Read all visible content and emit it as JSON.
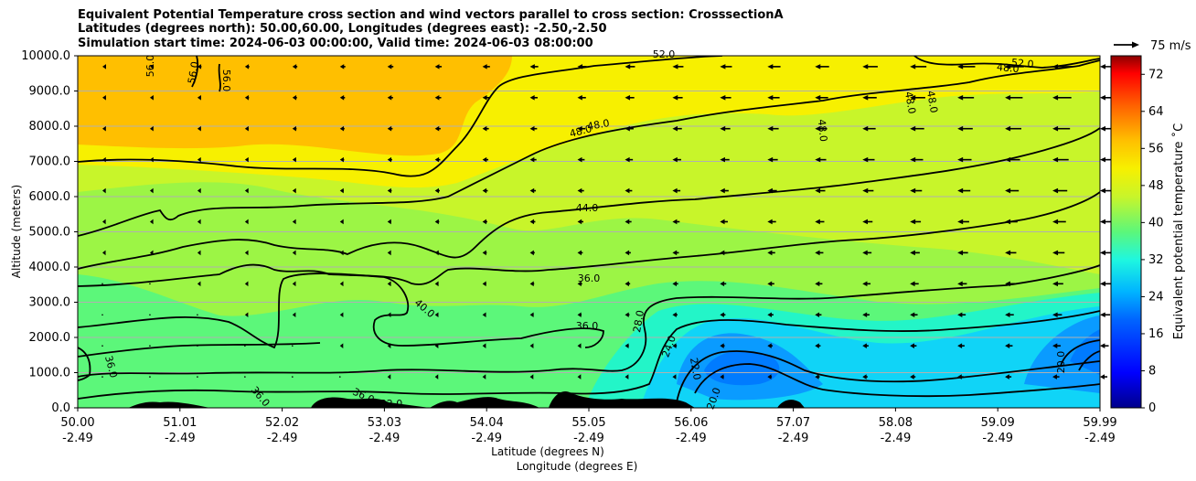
{
  "title_lines": [
    "Equivalent Potential Temperature cross section and wind vectors parallel to cross section: CrosssectionA",
    "Latitudes (degrees north): 50.00,60.00, Longitudes (degrees east): -2.50,-2.50",
    "Simulation start time: 2024-06-03 00:00:00, Valid time: 2024-06-03 08:00:00"
  ],
  "chart_data": {
    "type": "contour-cross-section",
    "title": "Equivalent Potential Temperature cross section and wind vectors parallel to cross section: CrosssectionA",
    "ylabel": "Altitude (meters)",
    "xlabel_lines": [
      "Latitude (degrees N)",
      "Longitude (degrees E)"
    ],
    "ylim": [
      0,
      10000
    ],
    "yticks": [
      "0.0",
      "1000.0",
      "2000.0",
      "3000.0",
      "4000.0",
      "5000.0",
      "6000.0",
      "7000.0",
      "8000.0",
      "9000.0",
      "10000.0"
    ],
    "xtick_lat": [
      "50.00",
      "51.01",
      "52.02",
      "53.03",
      "54.04",
      "55.05",
      "56.06",
      "57.07",
      "58.08",
      "59.09",
      "59.99"
    ],
    "xtick_lon": [
      "-2.49",
      "-2.49",
      "-2.49",
      "-2.49",
      "-2.49",
      "-2.49",
      "-2.49",
      "-2.49",
      "-2.49",
      "-2.49",
      "-2.49"
    ],
    "colorbar": {
      "label": "Equivalent potential temperature ˚C",
      "ticks": [
        "0",
        "8",
        "16",
        "24",
        "32",
        "40",
        "48",
        "56",
        "64",
        "72"
      ],
      "range": [
        0,
        76
      ]
    },
    "quiver_key": "75 m/s",
    "contour_labels": [
      "56.0",
      "56.0",
      "56.0",
      "52.0",
      "52.0",
      "48.0",
      "48.0",
      "48.0",
      "48.0",
      "48.0",
      "48.0",
      "44.0",
      "40.0",
      "36.0",
      "36.0",
      "36.0",
      "36.0",
      "36.0",
      "32.0",
      "28.0",
      "24.0",
      "22.0",
      "20.0",
      "20.0"
    ]
  },
  "colors": {
    "orange": "#ffbf00",
    "yellow": "#f7f000",
    "lime": "#c8f52a",
    "lightgreen": "#9cf545",
    "green": "#5cf77a",
    "cyan": "#23f5c8",
    "lightblue": "#10d4f7",
    "blue": "#0a9bff",
    "darkblue": "#007bff"
  }
}
